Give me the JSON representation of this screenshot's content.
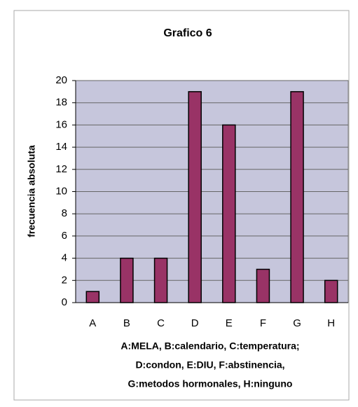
{
  "chart_data": {
    "type": "bar",
    "title": "Grafico 6",
    "ylabel": "frecuencia absoluta",
    "categories": [
      "A",
      "B",
      "C",
      "D",
      "E",
      "F",
      "G",
      "H"
    ],
    "values": [
      1,
      4,
      4,
      19,
      16,
      3,
      19,
      2
    ],
    "color": "#993366",
    "ylim": [
      0,
      20
    ],
    "yticks": [
      0,
      2,
      4,
      6,
      8,
      10,
      12,
      14,
      16,
      18,
      20
    ],
    "grid": true,
    "caption": [
      "A:MELA, B:calendario, C:temperatura;",
      "D:condon, E:DIU, F:abstinencia,",
      "G:metodos hormonales, H:ninguno"
    ]
  }
}
